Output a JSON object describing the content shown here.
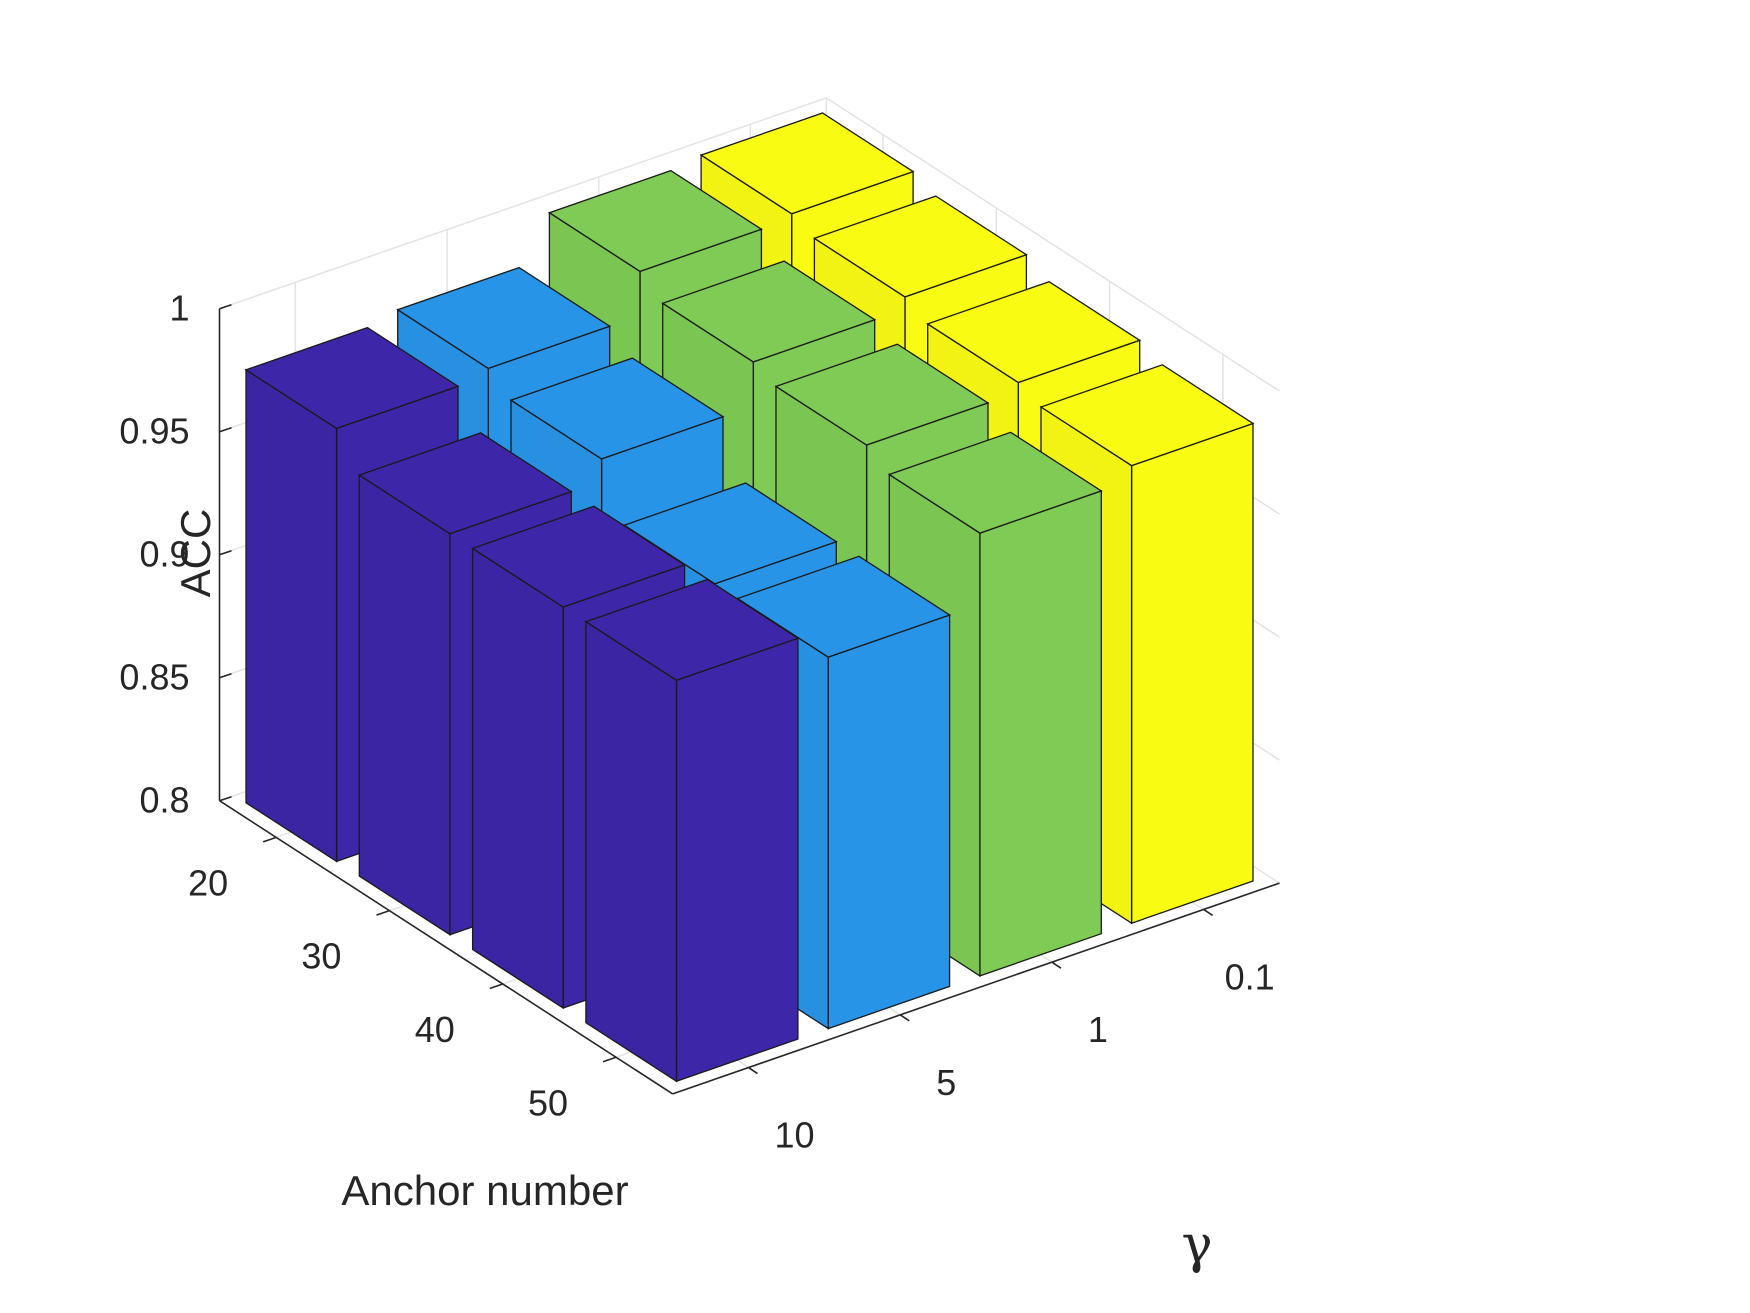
{
  "chart_data": {
    "type": "bar3d",
    "zlabel": "ACC",
    "xlabel": "Anchor number",
    "ylabel": "γ",
    "zlim": [
      0.8,
      1
    ],
    "z_ticks": [
      "0.8",
      "0.85",
      "0.9",
      "0.95",
      "1"
    ],
    "anchor_numbers": [
      "20",
      "30",
      "40",
      "50"
    ],
    "gamma_values": [
      "10",
      "5",
      "1",
      "0.1"
    ],
    "grid": true,
    "series": [
      {
        "name": "10",
        "color": "#3e26a8",
        "values": [
          0.976,
          0.963,
          0.963,
          0.963
        ]
      },
      {
        "name": "5",
        "color": "#2894e8",
        "values": [
          0.979,
          0.972,
          0.951,
          0.951
        ]
      },
      {
        "name": "1",
        "color": "#7fcb55",
        "values": [
          0.997,
          0.99,
          0.986,
          0.98
        ]
      },
      {
        "name": "0.1",
        "color": "#f9fb13",
        "values": [
          0.999,
          0.995,
          0.99,
          0.986
        ]
      }
    ]
  }
}
